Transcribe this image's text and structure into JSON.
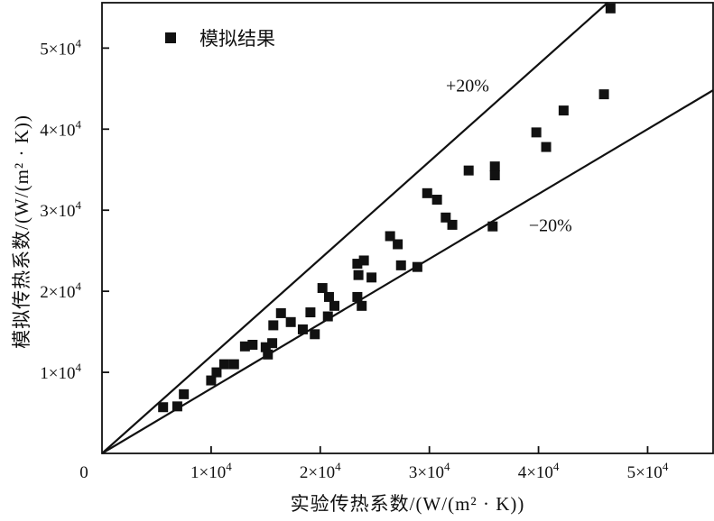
{
  "figure": {
    "background": "#ffffff",
    "ink": "#111111"
  },
  "chart_data": {
    "type": "scatter",
    "title": "",
    "xlabel": "实验传热系数/(W/(m² · K))",
    "ylabel": "模拟传热系数/(W/(m² · K))",
    "xlim": [
      0,
      56000
    ],
    "ylim": [
      0,
      55600
    ],
    "grid": false,
    "frame": "full-box",
    "x_ticks": [
      {
        "value": 0,
        "base": "0",
        "exp": ""
      },
      {
        "value": 10000,
        "base": "1×10",
        "exp": "4"
      },
      {
        "value": 20000,
        "base": "2×10",
        "exp": "4"
      },
      {
        "value": 30000,
        "base": "3×10",
        "exp": "4"
      },
      {
        "value": 40000,
        "base": "4×10",
        "exp": "4"
      },
      {
        "value": 50000,
        "base": "5×10",
        "exp": "4"
      }
    ],
    "y_ticks": [
      {
        "value": 10000,
        "base": "1×10",
        "exp": "4"
      },
      {
        "value": 20000,
        "base": "2×10",
        "exp": "4"
      },
      {
        "value": 30000,
        "base": "3×10",
        "exp": "4"
      },
      {
        "value": 40000,
        "base": "4×10",
        "exp": "4"
      },
      {
        "value": 50000,
        "base": "5×10",
        "exp": "4"
      }
    ],
    "legend": {
      "position": "top-left-inside",
      "entries": [
        {
          "label": "模拟结果",
          "marker": "filled-square",
          "color": "#111111"
        }
      ]
    },
    "series": [
      {
        "name": "模拟结果",
        "marker": "square",
        "marker_size_px": 11,
        "color": "#111111",
        "points": [
          [
            5600,
            5700
          ],
          [
            6900,
            5800
          ],
          [
            7500,
            7300
          ],
          [
            10000,
            9000
          ],
          [
            10500,
            10000
          ],
          [
            11200,
            11000
          ],
          [
            12100,
            11000
          ],
          [
            13100,
            13200
          ],
          [
            13800,
            13400
          ],
          [
            15000,
            13100
          ],
          [
            15200,
            12200
          ],
          [
            15600,
            13600
          ],
          [
            15700,
            15800
          ],
          [
            16400,
            17300
          ],
          [
            17300,
            16200
          ],
          [
            18400,
            15300
          ],
          [
            19100,
            17400
          ],
          [
            19500,
            14700
          ],
          [
            20200,
            20400
          ],
          [
            20700,
            16900
          ],
          [
            20800,
            19300
          ],
          [
            21300,
            18200
          ],
          [
            23400,
            23400
          ],
          [
            23500,
            22000
          ],
          [
            24000,
            23800
          ],
          [
            23400,
            19300
          ],
          [
            23800,
            18200
          ],
          [
            24700,
            21700
          ],
          [
            26400,
            26800
          ],
          [
            27100,
            25800
          ],
          [
            27400,
            23200
          ],
          [
            28900,
            23000
          ],
          [
            29800,
            32100
          ],
          [
            30700,
            31300
          ],
          [
            31500,
            29100
          ],
          [
            32100,
            28200
          ],
          [
            33600,
            34900
          ],
          [
            35800,
            28000
          ],
          [
            36000,
            35400
          ],
          [
            36000,
            34300
          ],
          [
            39800,
            39600
          ],
          [
            40700,
            37800
          ],
          [
            42300,
            42300
          ],
          [
            46000,
            44300
          ],
          [
            46600,
            54900
          ]
        ]
      }
    ],
    "reference_lines": [
      {
        "label": "+20%",
        "slope": 1.2,
        "color": "#111111",
        "label_at": [
          33500,
          45400
        ]
      },
      {
        "label": "−20%",
        "slope": 0.8,
        "color": "#111111",
        "label_at": [
          41100,
          28200
        ]
      }
    ]
  }
}
